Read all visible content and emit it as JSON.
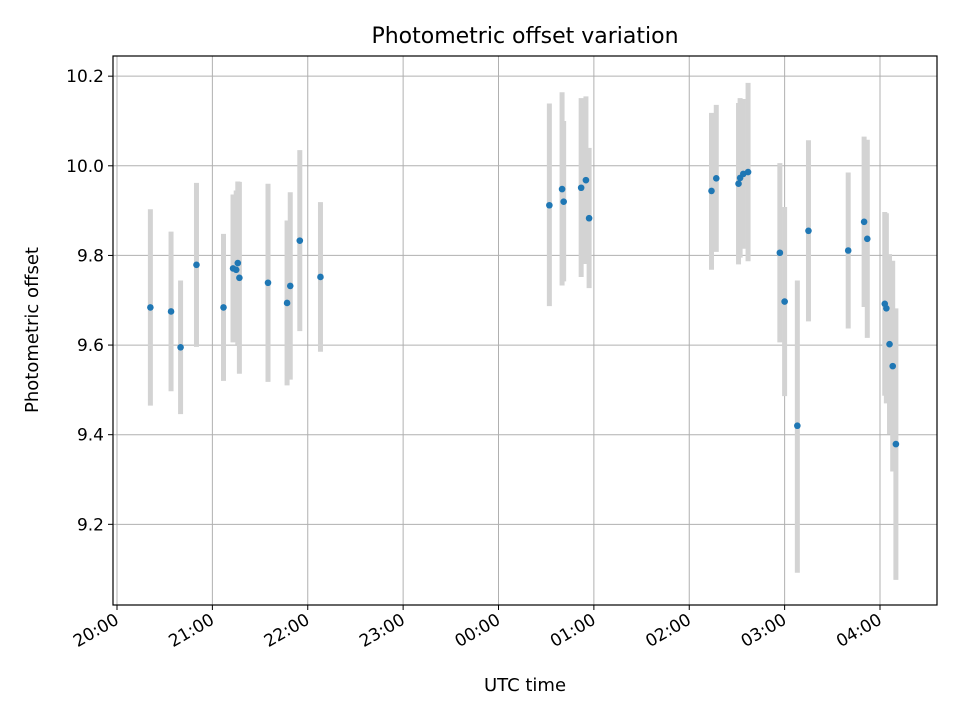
{
  "chart_data": {
    "type": "scatter",
    "title": "Photometric offset variation",
    "xlabel": "UTC time",
    "ylabel": "Photometric offset",
    "grid": true,
    "x_is_time": true,
    "xlim": [
      "20:00",
      "04:35"
    ],
    "ylim": [
      9.02,
      10.245
    ],
    "x_ticks": [
      "20:00",
      "21:00",
      "22:00",
      "23:00",
      "00:00",
      "01:00",
      "02:00",
      "03:00",
      "04:00"
    ],
    "y_ticks": [
      9.2,
      9.4,
      9.6,
      9.8,
      10.0,
      10.2
    ],
    "colors": {
      "point": "#1f77b4",
      "errorbar": "#d3d3d3",
      "grid": "#b0b0b0"
    },
    "points": [
      {
        "t": "20:21",
        "y": 9.684,
        "lo": 9.465,
        "hi": 9.903
      },
      {
        "t": "20:34",
        "y": 9.675,
        "lo": 9.497,
        "hi": 9.853
      },
      {
        "t": "20:40",
        "y": 9.595,
        "lo": 9.446,
        "hi": 9.744
      },
      {
        "t": "20:50",
        "y": 9.779,
        "lo": 9.596,
        "hi": 9.962
      },
      {
        "t": "21:07",
        "y": 9.684,
        "lo": 9.52,
        "hi": 9.848
      },
      {
        "t": "21:13",
        "y": 9.771,
        "lo": 9.606,
        "hi": 9.936
      },
      {
        "t": "21:15",
        "y": 9.768,
        "lo": 9.617,
        "hi": 9.945
      },
      {
        "t": "21:16",
        "y": 9.783,
        "lo": 9.601,
        "hi": 9.965
      },
      {
        "t": "21:17",
        "y": 9.75,
        "lo": 9.536,
        "hi": 9.964
      },
      {
        "t": "21:35",
        "y": 9.739,
        "lo": 9.518,
        "hi": 9.96
      },
      {
        "t": "21:47",
        "y": 9.694,
        "lo": 9.51,
        "hi": 9.878
      },
      {
        "t": "21:49",
        "y": 9.732,
        "lo": 9.523,
        "hi": 9.941
      },
      {
        "t": "21:55",
        "y": 9.833,
        "lo": 9.631,
        "hi": 10.035
      },
      {
        "t": "22:08",
        "y": 9.752,
        "lo": 9.585,
        "hi": 9.919
      },
      {
        "t": "00:32",
        "y": 9.912,
        "lo": 9.687,
        "hi": 10.139
      },
      {
        "t": "00:40",
        "y": 9.948,
        "lo": 9.733,
        "hi": 10.164
      },
      {
        "t": "00:41",
        "y": 9.92,
        "lo": 9.742,
        "hi": 10.1
      },
      {
        "t": "00:52",
        "y": 9.951,
        "lo": 9.752,
        "hi": 10.151
      },
      {
        "t": "00:55",
        "y": 9.968,
        "lo": 9.781,
        "hi": 10.155
      },
      {
        "t": "00:57",
        "y": 9.883,
        "lo": 9.727,
        "hi": 10.04
      },
      {
        "t": "02:14",
        "y": 9.944,
        "lo": 9.768,
        "hi": 10.118
      },
      {
        "t": "02:17",
        "y": 9.972,
        "lo": 9.808,
        "hi": 10.136
      },
      {
        "t": "02:31",
        "y": 9.96,
        "lo": 9.78,
        "hi": 10.14
      },
      {
        "t": "02:32",
        "y": 9.973,
        "lo": 9.795,
        "hi": 10.151
      },
      {
        "t": "02:34",
        "y": 9.982,
        "lo": 9.815,
        "hi": 10.149
      },
      {
        "t": "02:37",
        "y": 9.986,
        "lo": 9.787,
        "hi": 10.185
      },
      {
        "t": "02:57",
        "y": 9.806,
        "lo": 9.606,
        "hi": 10.006
      },
      {
        "t": "03:00",
        "y": 9.697,
        "lo": 9.486,
        "hi": 9.908
      },
      {
        "t": "03:08",
        "y": 9.42,
        "lo": 9.092,
        "hi": 9.744
      },
      {
        "t": "03:15",
        "y": 9.855,
        "lo": 9.653,
        "hi": 10.057
      },
      {
        "t": "03:40",
        "y": 9.811,
        "lo": 9.637,
        "hi": 9.985
      },
      {
        "t": "03:50",
        "y": 9.875,
        "lo": 9.685,
        "hi": 10.065
      },
      {
        "t": "03:52",
        "y": 9.837,
        "lo": 9.616,
        "hi": 10.058
      },
      {
        "t": "04:03",
        "y": 9.692,
        "lo": 9.487,
        "hi": 9.897
      },
      {
        "t": "04:04",
        "y": 9.682,
        "lo": 9.47,
        "hi": 9.894
      },
      {
        "t": "04:06",
        "y": 9.602,
        "lo": 9.401,
        "hi": 9.803
      },
      {
        "t": "04:08",
        "y": 9.553,
        "lo": 9.318,
        "hi": 9.788
      },
      {
        "t": "04:10",
        "y": 9.379,
        "lo": 9.076,
        "hi": 9.682
      }
    ]
  }
}
